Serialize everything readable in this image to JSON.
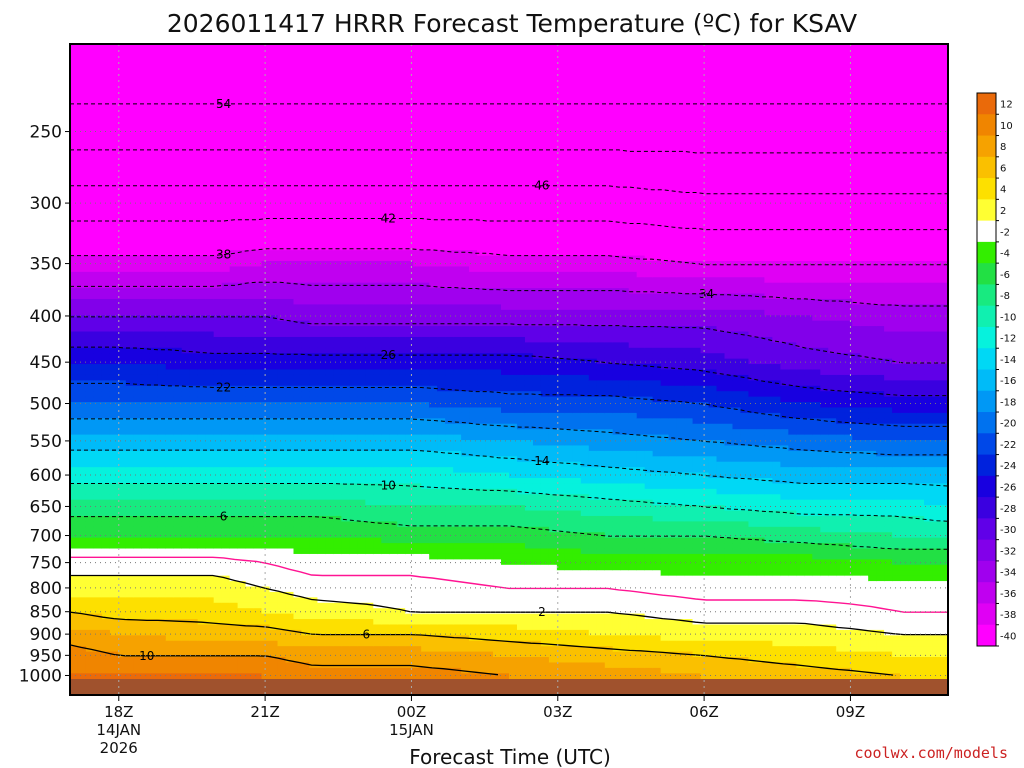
{
  "chart_data": {
    "type": "heatmap",
    "title": "2026011417 HRRR Forecast Temperature (ºC) for KSAV",
    "xlabel": "Forecast Time (UTC)",
    "ylabel": "",
    "source": "coolwx.com/models",
    "y_scale": "log-pressure",
    "ylim": [
      1000,
      200
    ],
    "xlim": [
      -1,
      17
    ],
    "y_ticks": [
      250,
      300,
      350,
      400,
      450,
      500,
      550,
      600,
      650,
      700,
      750,
      800,
      850,
      900,
      950,
      1000
    ],
    "x_ticks": [
      {
        "hour": 0,
        "label": "18Z",
        "date": "14JAN",
        "year": "2026"
      },
      {
        "hour": 3,
        "label": "21Z",
        "date": "",
        "year": ""
      },
      {
        "hour": 6,
        "label": "00Z",
        "date": "15JAN",
        "year": ""
      },
      {
        "hour": 9,
        "label": "03Z",
        "date": "",
        "year": ""
      },
      {
        "hour": 12,
        "label": "06Z",
        "date": "",
        "year": ""
      },
      {
        "hour": 15,
        "label": "09Z",
        "date": "",
        "year": ""
      }
    ],
    "colorbar": {
      "levels": [
        12,
        10,
        8,
        6,
        4,
        2,
        -2,
        -4,
        -6,
        -8,
        -10,
        -12,
        -14,
        -16,
        -18,
        -20,
        -22,
        -24,
        -26,
        -28,
        -30,
        -32,
        -34,
        -36,
        -38,
        -40
      ],
      "colors": [
        "#ea6a0a",
        "#f08500",
        "#f6a200",
        "#fac000",
        "#fde000",
        "#ffff33",
        "#ffffff",
        "#33ee00",
        "#22e044",
        "#18ea80",
        "#10f0b0",
        "#06f2dd",
        "#00d8f5",
        "#00bbf8",
        "#0098f5",
        "#0072ef",
        "#0048e8",
        "#0022dd",
        "#1800e0",
        "#3a00e0",
        "#6000e8",
        "#8200ea",
        "#a000ee",
        "#c000f0",
        "#e000f4",
        "#ff00ff"
      ]
    },
    "temperature_profiles": {
      "hours": [
        -1,
        0,
        2,
        3,
        4,
        6,
        8,
        10,
        12,
        14,
        16,
        17
      ],
      "pressure_levels": [
        1000,
        950,
        900,
        850,
        800,
        750,
        700,
        650,
        600,
        550,
        500,
        450,
        400,
        350,
        300,
        250,
        200
      ],
      "temps": [
        [
          12,
          11,
          9,
          6,
          3,
          1,
          -4,
          -7,
          -11,
          -15,
          -20,
          -24,
          -30,
          -37,
          -44,
          -52,
          -58
        ],
        [
          12,
          10,
          8,
          5,
          3,
          1,
          -4,
          -7,
          -11,
          -15,
          -20,
          -24,
          -30,
          -37,
          -44,
          -52,
          -58
        ],
        [
          12,
          10,
          7,
          5,
          3,
          1,
          -4,
          -7,
          -11,
          -15,
          -20,
          -25,
          -30,
          -37,
          -44,
          -52,
          -58
        ],
        [
          12,
          10,
          7,
          4,
          2,
          0,
          -4,
          -7,
          -11,
          -15,
          -20,
          -25,
          -30,
          -36,
          -44,
          -52,
          -58
        ],
        [
          11,
          9,
          6,
          3,
          1,
          -1,
          -4,
          -7,
          -11,
          -15,
          -20,
          -25,
          -31,
          -36,
          -44,
          -52,
          -58
        ],
        [
          11,
          9,
          6,
          2,
          1,
          -1,
          -5,
          -8,
          -11,
          -15,
          -20,
          -25,
          -31,
          -36,
          -44,
          -52,
          -58
        ],
        [
          10,
          8,
          5,
          2,
          0,
          -2,
          -5,
          -8,
          -12,
          -16,
          -21,
          -25,
          -31,
          -37,
          -44,
          -52,
          -58
        ],
        [
          9,
          7,
          4,
          2,
          0,
          -3,
          -6,
          -9,
          -13,
          -17,
          -21,
          -26,
          -31,
          -37,
          -44,
          -52,
          -58
        ],
        [
          8,
          6,
          3,
          1,
          -1,
          -3,
          -6,
          -10,
          -14,
          -18,
          -22,
          -27,
          -31,
          -38,
          -45,
          -52,
          -58
        ],
        [
          7,
          5,
          3,
          1,
          -1,
          -3,
          -7,
          -11,
          -15,
          -19,
          -24,
          -29,
          -32,
          -38,
          -45,
          -52,
          -58
        ],
        [
          6,
          4,
          2,
          0,
          -1,
          -4,
          -8,
          -11,
          -15,
          -20,
          -25,
          -30,
          -33,
          -38,
          -45,
          -52,
          -58
        ],
        [
          5,
          4,
          2,
          0,
          -1,
          -4,
          -8,
          -12,
          -15,
          -20,
          -25,
          -30,
          -33,
          -38,
          -45,
          -52,
          -58
        ]
      ]
    },
    "contour_lines": [
      {
        "value": 10,
        "style": "solid",
        "label": "10"
      },
      {
        "value": 6,
        "style": "solid",
        "label": "6"
      },
      {
        "value": 2,
        "style": "solid",
        "label": "2"
      },
      {
        "value": 0,
        "style": "solid-magenta",
        "label": ""
      },
      {
        "value": -6,
        "style": "dashed",
        "label": "6"
      },
      {
        "value": -10,
        "style": "dashed",
        "label": "10"
      },
      {
        "value": -14,
        "style": "dashed",
        "label": "14"
      },
      {
        "value": -18,
        "style": "dashed",
        "label": ""
      },
      {
        "value": -22,
        "style": "dashed",
        "label": "22"
      },
      {
        "value": -26,
        "style": "dashed",
        "label": "26"
      },
      {
        "value": -30,
        "style": "dashed",
        "label": ""
      },
      {
        "value": -34,
        "style": "dashed",
        "label": "34"
      },
      {
        "value": -38,
        "style": "dashed",
        "label": "38"
      },
      {
        "value": -42,
        "style": "dashed",
        "label": "42"
      },
      {
        "value": -46,
        "style": "dashed",
        "label": "46"
      },
      {
        "value": -50,
        "style": "dashed",
        "label": ""
      },
      {
        "value": -54,
        "style": "dashed",
        "label": "54"
      }
    ]
  }
}
